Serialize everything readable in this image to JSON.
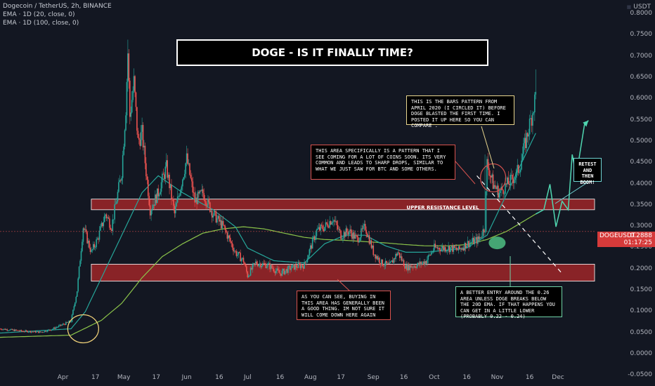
{
  "legend": {
    "symbol_line": "Dogecoin / TetherUS, 2h, BINANCE",
    "ema20": "EMA · 1D (20, close, 0)",
    "ema100": "EMA · 1D (100, close, 0)"
  },
  "title": "DOGE - IS IT FINALLY TIME?",
  "currency": "USDT",
  "notes": {
    "bars_pattern": "THIS IS THE BARS PATTERN FROM APRIL 2020 (I CIRCLED IT) BEFORE DOGE BLASTED THE FIRST TIME. I POSTED IT UP HERE SO YOU CAN COMPARE .",
    "sharp_drops": "THIS AREA SPECIFICALLY IS A PATTERN THAT I SEE COMING FOR A LOT OF COINS SOON. ITS VERY COMMON AND LEADS TO SHARP DROPS, SIMILAR TO WHAT WE JUST SAW FOR BTC AND SOME OTHERS.",
    "buying_area": "AS YOU CAN SEE, BUYING IN THIS AREA HAS GENERALLY BEEN A GOOD THING. IM NOT SURE IT WILL COME DOWN HERE AGAIN",
    "better_entry": "A BETTER ENTRY AROUND THE 0.26 AREA UNLESS DOGE BREAKS BELOW THE 20D EMA. IF THAT HAPPENS YOU CAN GET IN A LITTLE LOWER (probably 0.22 - 0.24)",
    "retest": "RETEST and then BOOM!"
  },
  "resistance_label": "UPPER RESISTANCE LEVEL",
  "price_tag": {
    "symbol": "DOGEUSDT",
    "price": "0.2888",
    "countdown": "01:17:25"
  },
  "colors": {
    "background": "#131722",
    "up": "#26a69a",
    "down": "#ef5350",
    "ema20": "#26a69a",
    "ema100": "#8bc34a",
    "zone": "#b2282a",
    "retest_arrow": "#4fd6b0"
  },
  "chart_data": {
    "type": "candlestick",
    "title": "DOGE - IS IT FINALLY TIME?",
    "xlabel": "",
    "ylabel": "USDT",
    "ylim": [
      -0.0333,
      0.8333
    ],
    "y_ticks": [
      "0.8000",
      "0.7500",
      "0.7000",
      "0.6500",
      "0.6000",
      "0.5500",
      "0.5000",
      "0.4500",
      "0.4000",
      "0.3500",
      "0.3000",
      "0.2500",
      "0.2000",
      "0.1500",
      "0.1000",
      "0.0500",
      "0.0000",
      "-0.0500"
    ],
    "x_ticks": [
      "Apr",
      "17",
      "May",
      "17",
      "Jun",
      "16",
      "Jul",
      "16",
      "Aug",
      "17",
      "Sep",
      "16",
      "Oct",
      "16",
      "Nov",
      "16",
      "Dec"
    ],
    "x_tick_days": [
      -19,
      -3,
      11,
      27,
      42,
      58,
      72,
      88,
      103,
      118,
      134,
      149,
      164,
      180,
      195,
      211,
      225
    ],
    "price_path": {
      "x_days": [
        -50,
        -40,
        -30,
        -25,
        -20,
        -15,
        -12,
        -9,
        -5,
        -2,
        2,
        5,
        10,
        12,
        13,
        14,
        16,
        18,
        20,
        24,
        28,
        32,
        36,
        42,
        46,
        50,
        55,
        60,
        66,
        70,
        72,
        76,
        82,
        88,
        94,
        100,
        106,
        110,
        114,
        118,
        122,
        126,
        130,
        134,
        138,
        142,
        146,
        150,
        156,
        160,
        164,
        168,
        172,
        176,
        180,
        186,
        188,
        189,
        190,
        193,
        196,
        200,
        204,
        206,
        210,
        212,
        214
      ],
      "close": [
        0.06,
        0.055,
        0.052,
        0.058,
        0.068,
        0.078,
        0.15,
        0.3,
        0.24,
        0.27,
        0.33,
        0.3,
        0.43,
        0.58,
        0.71,
        0.56,
        0.64,
        0.5,
        0.52,
        0.34,
        0.38,
        0.44,
        0.33,
        0.46,
        0.36,
        0.38,
        0.33,
        0.3,
        0.24,
        0.22,
        0.185,
        0.215,
        0.21,
        0.19,
        0.205,
        0.21,
        0.29,
        0.3,
        0.32,
        0.28,
        0.29,
        0.27,
        0.3,
        0.24,
        0.215,
        0.208,
        0.24,
        0.205,
        0.21,
        0.22,
        0.25,
        0.25,
        0.25,
        0.245,
        0.26,
        0.27,
        0.29,
        0.3,
        0.45,
        0.4,
        0.38,
        0.4,
        0.42,
        0.44,
        0.52,
        0.56,
        0.61
      ],
      "spikes": [
        {
          "x_day": 13,
          "high": 0.74
        },
        {
          "x_day": 189,
          "high": 0.47
        },
        {
          "x_day": 214,
          "high": 0.67
        }
      ]
    },
    "ema_20d": {
      "x_days": [
        -50,
        -15,
        -8,
        0,
        10,
        20,
        28,
        40,
        55,
        66,
        72,
        85,
        100,
        110,
        120,
        130,
        140,
        150,
        160,
        170,
        180,
        190,
        200,
        214
      ],
      "values": [
        0.05,
        0.06,
        0.1,
        0.18,
        0.28,
        0.38,
        0.42,
        0.38,
        0.34,
        0.3,
        0.25,
        0.22,
        0.215,
        0.26,
        0.28,
        0.28,
        0.255,
        0.24,
        0.24,
        0.245,
        0.25,
        0.28,
        0.38,
        0.52
      ]
    },
    "ema_100d": {
      "x_days": [
        -50,
        -15,
        0,
        10,
        20,
        30,
        40,
        50,
        60,
        70,
        80,
        90,
        100,
        110,
        120,
        130,
        140,
        150,
        160,
        170,
        180,
        190,
        200,
        214
      ],
      "values": [
        0.04,
        0.045,
        0.08,
        0.12,
        0.18,
        0.23,
        0.26,
        0.285,
        0.295,
        0.3,
        0.295,
        0.285,
        0.275,
        0.27,
        0.268,
        0.265,
        0.262,
        0.258,
        0.255,
        0.255,
        0.258,
        0.27,
        0.29,
        0.33
      ]
    },
    "zones": [
      {
        "name": "UPPER RESISTANCE LEVEL",
        "low": 0.34,
        "high": 0.365
      },
      {
        "name": "",
        "low": 0.172,
        "high": 0.212
      }
    ],
    "projection": {
      "x_days": [
        214,
        218,
        221,
        224,
        227,
        230,
        232,
        234,
        238,
        240
      ],
      "values": [
        0.33,
        0.34,
        0.4,
        0.3,
        0.36,
        0.34,
        0.47,
        0.42,
        0.54,
        0.55
      ]
    },
    "trendline": {
      "x_day": [
        185,
        227
      ],
      "values": [
        0.42,
        0.19
      ]
    },
    "current_price": 0.2888,
    "grid": false,
    "legend_position": "top-left"
  }
}
